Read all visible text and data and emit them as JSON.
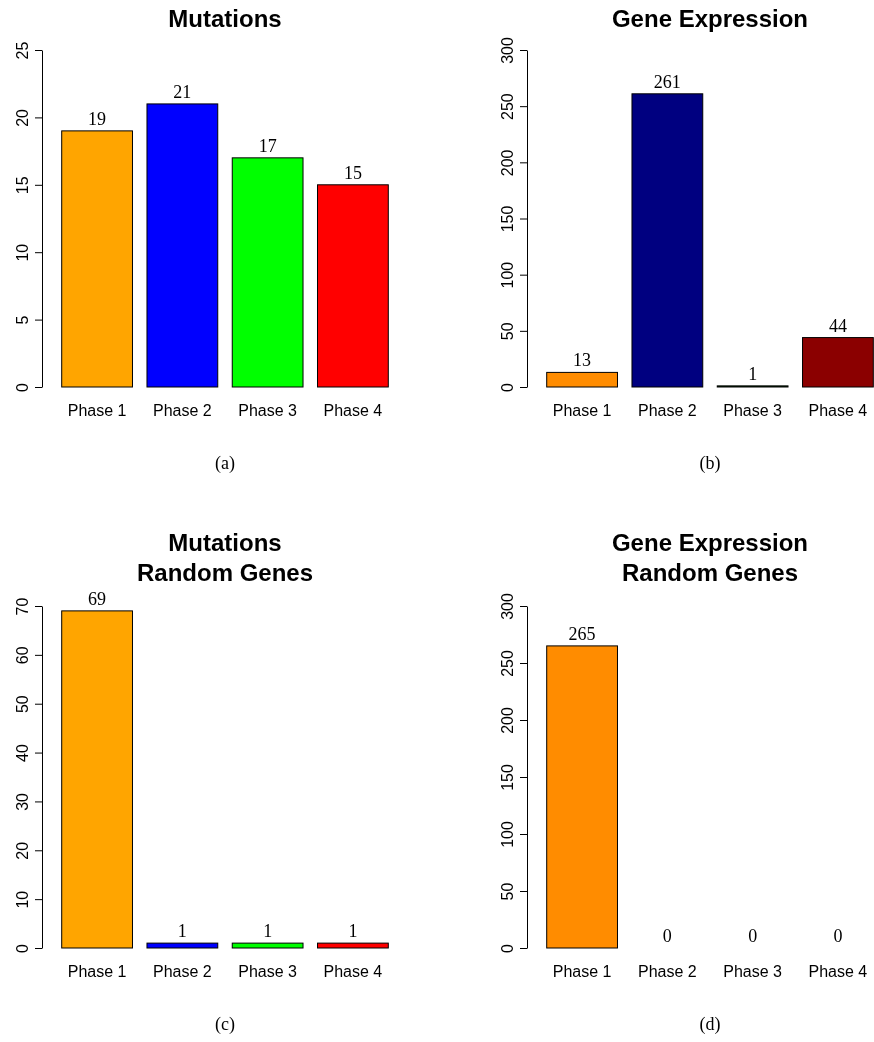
{
  "chart_data": [
    {
      "type": "bar",
      "title": "Mutations",
      "categories": [
        "Phase 1",
        "Phase 2",
        "Phase 3",
        "Phase 4"
      ],
      "values": [
        19,
        21,
        17,
        15
      ],
      "colors": [
        "#ffa500",
        "#0000ff",
        "#00ff00",
        "#ff0000"
      ],
      "ylim": [
        0,
        25
      ],
      "yticks": [
        0,
        5,
        10,
        15,
        20,
        25
      ],
      "data_labels": true,
      "grid": false,
      "annotations": [
        "(a)"
      ]
    },
    {
      "type": "bar",
      "title": "Gene Expression",
      "categories": [
        "Phase 1",
        "Phase 2",
        "Phase 3",
        "Phase 4"
      ],
      "values": [
        13,
        261,
        1,
        44
      ],
      "colors": [
        "#ff8c00",
        "#000080",
        "#006400",
        "#8b0000"
      ],
      "ylim": [
        0,
        300
      ],
      "yticks": [
        0,
        50,
        100,
        150,
        200,
        250,
        300
      ],
      "data_labels": true,
      "grid": false,
      "annotations": [
        "(b)"
      ]
    },
    {
      "type": "bar",
      "title": "Mutations",
      "subtitle": "Random Genes",
      "categories": [
        "Phase 1",
        "Phase 2",
        "Phase 3",
        "Phase 4"
      ],
      "values": [
        69,
        1,
        1,
        1
      ],
      "colors": [
        "#ffa500",
        "#0000ff",
        "#00ff00",
        "#ff0000"
      ],
      "ylim": [
        0,
        70
      ],
      "yticks": [
        0,
        10,
        20,
        30,
        40,
        50,
        60,
        70
      ],
      "data_labels": true,
      "grid": false,
      "annotations": [
        "(c)"
      ]
    },
    {
      "type": "bar",
      "title": "Gene Expression",
      "subtitle": "Random Genes",
      "categories": [
        "Phase 1",
        "Phase 2",
        "Phase 3",
        "Phase 4"
      ],
      "values": [
        265,
        0,
        0,
        0
      ],
      "colors": [
        "#ff8c00",
        "#000080",
        "#006400",
        "#8b0000"
      ],
      "ylim": [
        0,
        300
      ],
      "yticks": [
        0,
        50,
        100,
        150,
        200,
        250,
        300
      ],
      "data_labels": true,
      "grid": false,
      "annotations": [
        "(d)"
      ]
    }
  ]
}
